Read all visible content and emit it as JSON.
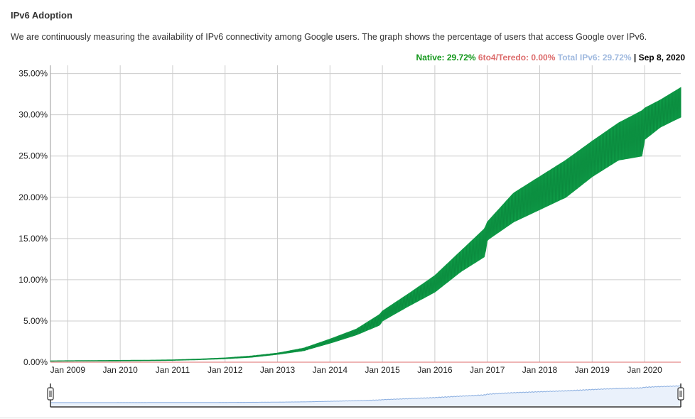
{
  "header": {
    "title": "IPv6 Adoption",
    "description": "We are continuously measuring the availability of IPv6 connectivity among Google users. The graph shows the percentage of users that access Google over IPv6."
  },
  "legend": {
    "native_label": "Native: 29.72%",
    "teredo_label": "6to4/Teredo: 0.00%",
    "total_label": "Total IPv6: 29.72%",
    "separator": " | ",
    "date": "Sep 8, 2020"
  },
  "colors": {
    "native": "#0F9D48",
    "teredo": "#DC6B6B",
    "total": "#9FB9DF",
    "grid": "#CCCCCC",
    "navigator_fill": "#EAF1FB",
    "navigator_line": "#8AAEE0"
  },
  "chart_data": {
    "type": "area",
    "title": "",
    "xlabel": "",
    "ylabel": "",
    "ylim": [
      0,
      36
    ],
    "y_ticks": [
      "0.00%",
      "5.00%",
      "10.00%",
      "15.00%",
      "20.00%",
      "25.00%",
      "30.00%",
      "35.00%"
    ],
    "y_tick_values": [
      0,
      5,
      10,
      15,
      20,
      25,
      30,
      35
    ],
    "x_ticks": [
      "Jan 2009",
      "Jan 2010",
      "Jan 2011",
      "Jan 2012",
      "Jan 2013",
      "Jan 2014",
      "Jan 2015",
      "Jan 2016",
      "Jan 2017",
      "Jan 2018",
      "Jan 2019",
      "Jan 2020"
    ],
    "x_tick_values": [
      2009,
      2010,
      2011,
      2012,
      2013,
      2014,
      2015,
      2016,
      2017,
      2018,
      2019,
      2020
    ],
    "xlim": [
      2008.67,
      2020.69
    ],
    "grid": true,
    "series": [
      {
        "name": "Native",
        "color": "#0F9D48",
        "x": [
          2008.67,
          2009.0,
          2009.5,
          2010.0,
          2010.5,
          2011.0,
          2011.5,
          2012.0,
          2012.5,
          2013.0,
          2013.5,
          2014.0,
          2014.5,
          2014.95,
          2015.0,
          2015.5,
          2016.0,
          2016.5,
          2016.95,
          2017.0,
          2017.5,
          2018.0,
          2018.5,
          2019.0,
          2019.5,
          2019.95,
          2020.0,
          2020.3,
          2020.69
        ],
        "low": [
          0.12,
          0.14,
          0.15,
          0.16,
          0.18,
          0.22,
          0.3,
          0.42,
          0.6,
          0.95,
          1.4,
          2.3,
          3.3,
          4.5,
          5.0,
          6.8,
          8.5,
          11.0,
          12.8,
          14.8,
          17.0,
          18.5,
          20.0,
          22.5,
          24.5,
          25.0,
          27.0,
          28.5,
          29.72
        ],
        "high": [
          0.16,
          0.18,
          0.2,
          0.22,
          0.24,
          0.28,
          0.38,
          0.52,
          0.75,
          1.1,
          1.7,
          2.8,
          4.0,
          5.8,
          6.2,
          8.3,
          10.5,
          13.5,
          16.2,
          17.0,
          20.5,
          22.5,
          24.5,
          26.8,
          29.0,
          30.5,
          30.8,
          31.8,
          33.3
        ]
      },
      {
        "name": "6to4/Teredo",
        "color": "#DC6B6B",
        "x": [
          2008.67,
          2020.69
        ],
        "values": [
          0.0,
          0.0
        ]
      }
    ],
    "current": {
      "native_pct": 29.72,
      "teredo_pct": 0.0,
      "total_pct": 29.72
    }
  }
}
